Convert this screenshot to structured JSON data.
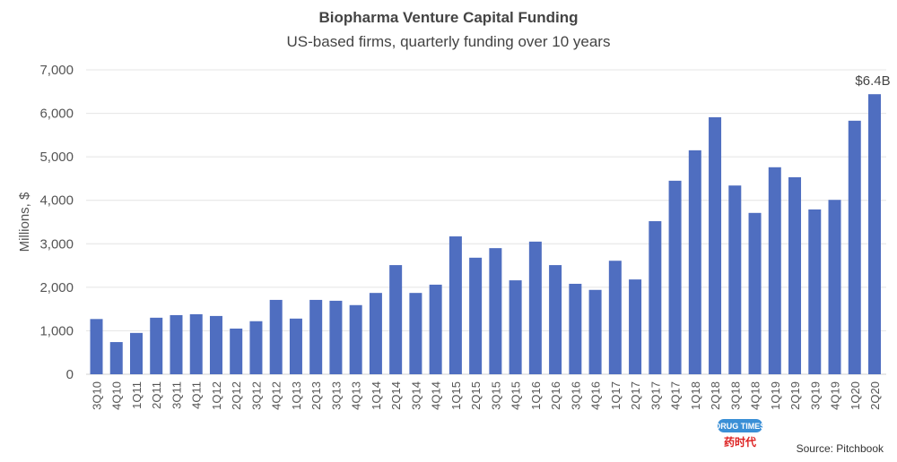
{
  "chart_data": {
    "type": "bar",
    "title": "Biopharma Venture Capital Funding",
    "subtitle": "US-based firms, quarterly funding over 10 years",
    "xlabel": "",
    "ylabel": "Millions, $",
    "ylim": [
      0,
      7000
    ],
    "yticks": [
      0,
      1000,
      2000,
      3000,
      4000,
      5000,
      6000,
      7000
    ],
    "ytick_labels": [
      "0",
      "1,000",
      "2,000",
      "3,000",
      "4,000",
      "5,000",
      "6,000",
      "7,000"
    ],
    "grid": true,
    "bar_color": "#4F6EC0",
    "categories": [
      "3Q10",
      "4Q10",
      "1Q11",
      "2Q11",
      "3Q11",
      "4Q11",
      "1Q12",
      "2Q12",
      "3Q12",
      "4Q12",
      "1Q13",
      "2Q13",
      "3Q13",
      "4Q13",
      "1Q14",
      "2Q14",
      "3Q14",
      "4Q14",
      "1Q15",
      "2Q15",
      "3Q15",
      "4Q15",
      "1Q16",
      "2Q16",
      "3Q16",
      "4Q16",
      "1Q17",
      "2Q17",
      "3Q17",
      "4Q17",
      "1Q18",
      "2Q18",
      "3Q18",
      "4Q18",
      "1Q19",
      "2Q19",
      "3Q19",
      "4Q19",
      "1Q20",
      "2Q20"
    ],
    "values": [
      1270,
      740,
      950,
      1300,
      1360,
      1380,
      1340,
      1050,
      1220,
      1710,
      1280,
      1710,
      1690,
      1590,
      1870,
      2510,
      1870,
      2060,
      3170,
      2680,
      2900,
      2160,
      3050,
      2510,
      2080,
      1940,
      2610,
      2180,
      3520,
      4450,
      5150,
      5910,
      4340,
      3710,
      4760,
      4530,
      3790,
      4010,
      5830,
      6440
    ],
    "annotations": [
      {
        "category": "2Q20",
        "text": "$6.4B"
      }
    ],
    "source": "Source: Pitchbook"
  },
  "watermark": {
    "line1": "DRUG TIMES",
    "line2": "药时代"
  }
}
